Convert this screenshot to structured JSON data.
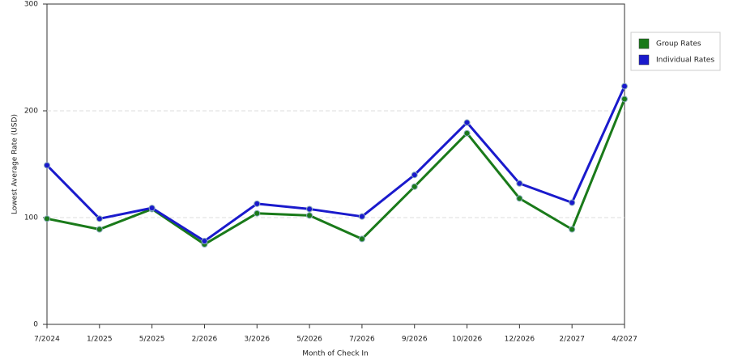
{
  "chart_data": {
    "type": "line",
    "x_label": "Month of Check In",
    "y_label": "Lowest Average Rate (USD)",
    "categories": [
      "7/2024",
      "1/2025",
      "5/2025",
      "2/2026",
      "3/2026",
      "5/2026",
      "7/2026",
      "9/2026",
      "10/2026",
      "12/2026",
      "2/2027",
      "4/2027"
    ],
    "series": [
      {
        "name": "Group Rates",
        "color": "#1a7a1a",
        "values": [
          99,
          89,
          108,
          75,
          104,
          102,
          80,
          129,
          179,
          118,
          89,
          211
        ]
      },
      {
        "name": "Individual Rates",
        "color": "#1a1acc",
        "values": [
          149,
          99,
          109,
          78,
          113,
          108,
          101,
          140,
          189,
          132,
          114,
          223
        ]
      }
    ],
    "ylim": [
      0,
      300
    ],
    "yticks": [
      0,
      100,
      200,
      300
    ],
    "grid": true
  }
}
